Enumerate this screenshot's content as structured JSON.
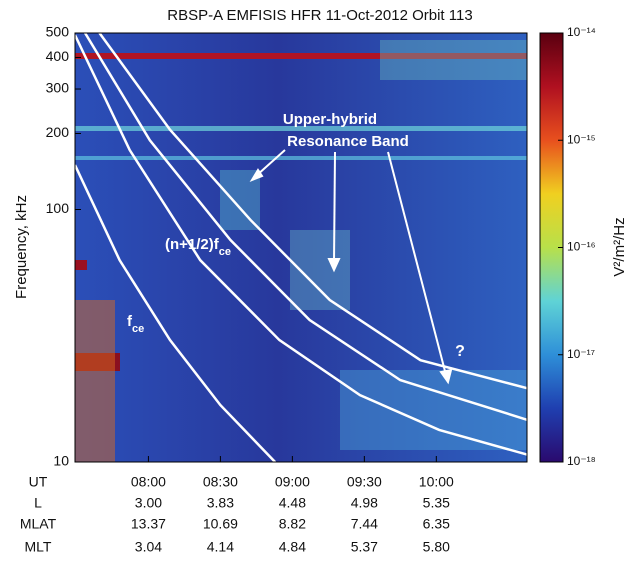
{
  "chart_data": {
    "type": "spectrogram",
    "title": "RBSP-A EMFISIS HFR 11-Oct-2012 Orbit 113",
    "ylabel": "Frequency, kHz",
    "ylog": true,
    "ylim": [
      10,
      500
    ],
    "yticks": [
      10,
      100,
      200,
      300,
      400,
      500
    ],
    "xlim": [
      7.49,
      10.63
    ],
    "xticks": [
      {
        "value": 8,
        "label": "08:00"
      },
      {
        "value": 8.5,
        "label": "08:30"
      },
      {
        "value": 9,
        "label": "09:00"
      },
      {
        "value": 9.5,
        "label": "09:30"
      },
      {
        "value": 10,
        "label": "10:00"
      }
    ],
    "xtick_row_label": "UT",
    "ephemeris": [
      {
        "label": "L",
        "values": [
          "3.00",
          "3.83",
          "4.48",
          "4.98",
          "5.35"
        ]
      },
      {
        "label": "MLAT",
        "values": [
          "13.37",
          "10.69",
          "8.82",
          "7.44",
          "6.35"
        ]
      },
      {
        "label": "MLT",
        "values": [
          "3.04",
          "4.14",
          "4.84",
          "5.37",
          "5.80"
        ]
      }
    ],
    "colorbar": {
      "log": true,
      "lim": [
        1e-18,
        1e-14
      ],
      "ticks": [
        {
          "value": 1e-14,
          "label": "10⁻¹⁴"
        },
        {
          "value": 1e-15,
          "label": "10⁻¹⁵"
        },
        {
          "value": 1e-16,
          "label": "10⁻¹⁶"
        },
        {
          "value": 1e-17,
          "label": "10⁻¹⁷"
        },
        {
          "value": 1e-18,
          "label": "10⁻¹⁸"
        }
      ],
      "label": "V²/m²/Hz",
      "colors": [
        "#2a0a6e",
        "#1f3fb0",
        "#2e8fd8",
        "#5fd3d6",
        "#b8e04a",
        "#f0d020",
        "#e8501e",
        "#b01020",
        "#5a0010"
      ]
    },
    "series": [
      {
        "color": "#ffffff",
        "x": [
          7.49,
          7.8,
          8.15,
          8.5,
          8.88
        ],
        "values": [
          150,
          63,
          30.4,
          16.8,
          10
        ]
      },
      {
        "color": "#ffffff",
        "x": [
          7.49,
          7.87,
          8.36,
          8.91,
          9.47,
          10.02,
          10.63
        ],
        "values": [
          491,
          172,
          63,
          30.4,
          18.4,
          13.4,
          10.7
        ]
      },
      {
        "color": "#ffffff",
        "x": [
          7.56,
          8.01,
          8.57,
          9.12,
          9.75,
          10.63
        ],
        "values": [
          500,
          188,
          75.7,
          36.5,
          21.1,
          14.7
        ]
      },
      {
        "color": "#ffffff",
        "x": [
          7.66,
          8.15,
          8.71,
          9.26,
          9.89,
          10.63
        ],
        "values": [
          500,
          207,
          90.8,
          43.8,
          25.3,
          19.6
        ]
      }
    ],
    "annotations": [
      {
        "text": "Upper-hybrid"
      },
      {
        "text": "Resonance Band"
      },
      {
        "text": "(n+1/2)f",
        "sub": "ce"
      },
      {
        "text": "f",
        "sub": "ce"
      },
      {
        "text": "?"
      }
    ]
  }
}
